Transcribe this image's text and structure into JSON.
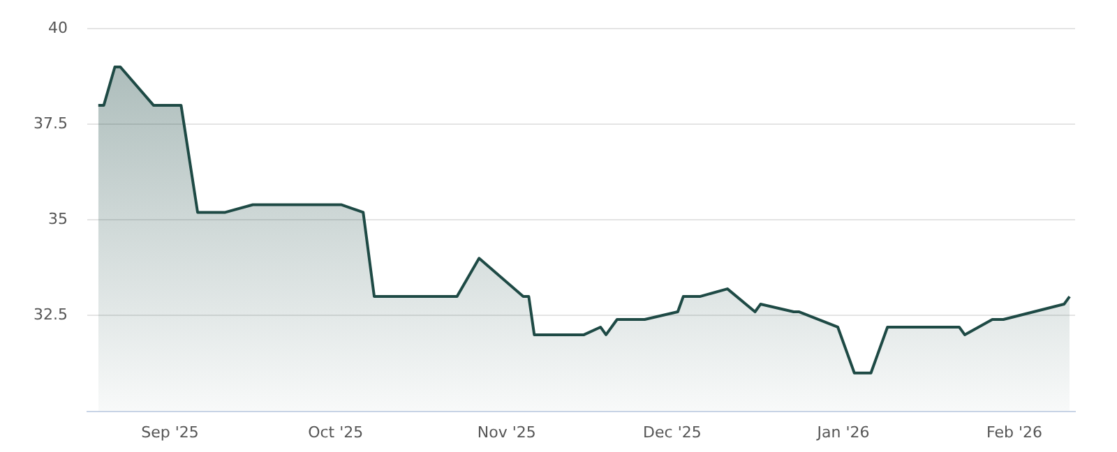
{
  "chart_data": {
    "type": "area",
    "x": [
      "2025-08-19",
      "2025-08-20",
      "2025-08-22",
      "2025-08-23",
      "2025-08-29",
      "2025-09-03",
      "2025-09-06",
      "2025-09-11",
      "2025-09-16",
      "2025-10-02",
      "2025-10-06",
      "2025-10-08",
      "2025-10-23",
      "2025-10-27",
      "2025-11-04",
      "2025-11-05",
      "2025-11-06",
      "2025-11-15",
      "2025-11-18",
      "2025-11-19",
      "2025-11-21",
      "2025-11-26",
      "2025-12-02",
      "2025-12-03",
      "2025-12-06",
      "2025-12-11",
      "2025-12-16",
      "2025-12-17",
      "2025-12-23",
      "2025-12-24",
      "2025-12-31",
      "2026-01-03",
      "2026-01-06",
      "2026-01-09",
      "2026-01-22",
      "2026-01-23",
      "2026-01-28",
      "2026-01-30",
      "2026-02-10",
      "2026-02-11"
    ],
    "series": [
      {
        "color": "#1e4a45",
        "values": [
          38,
          38,
          39,
          39,
          38,
          38,
          35.2,
          35.2,
          35.4,
          35.4,
          35.2,
          33,
          33,
          34,
          33,
          33,
          32,
          32,
          32.2,
          32,
          32.4,
          32.4,
          32.6,
          33,
          33,
          33.2,
          32.6,
          32.8,
          32.6,
          32.6,
          32.2,
          31,
          31,
          32.2,
          32.2,
          32,
          32.4,
          32.4,
          32.8,
          33
        ]
      }
    ],
    "xlim": [
      "2025-08-17",
      "2026-02-12"
    ],
    "xticks": [
      {
        "value": "2025-09-01",
        "label": "Sep '25"
      },
      {
        "value": "2025-10-01",
        "label": "Oct '25"
      },
      {
        "value": "2025-11-01",
        "label": "Nov '25"
      },
      {
        "value": "2025-12-01",
        "label": "Dec '25"
      },
      {
        "value": "2026-01-01",
        "label": "Jan '26"
      },
      {
        "value": "2026-02-01",
        "label": "Feb '26"
      }
    ],
    "ylim": [
      30,
      40
    ],
    "yticks": [
      32.5,
      35,
      37.5,
      40
    ],
    "grid": "y",
    "legend": false,
    "marker": "none",
    "line_style": "solid"
  }
}
